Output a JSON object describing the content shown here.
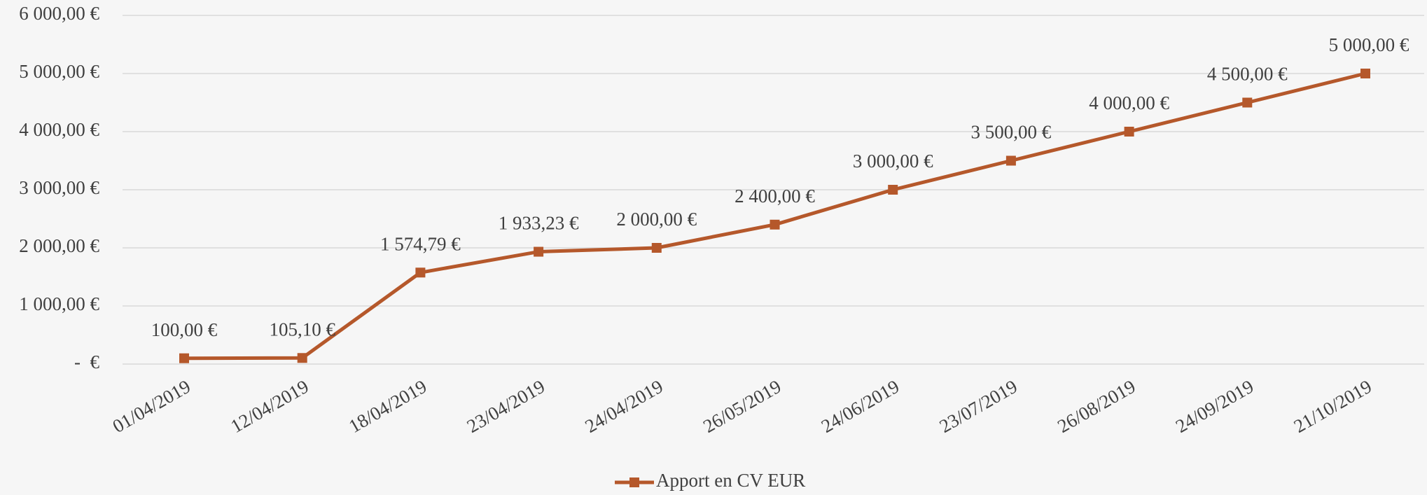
{
  "chart_data": {
    "type": "line",
    "categories": [
      "01/04/2019",
      "12/04/2019",
      "18/04/2019",
      "23/04/2019",
      "24/04/2019",
      "26/05/2019",
      "24/06/2019",
      "23/07/2019",
      "26/08/2019",
      "24/09/2019",
      "21/10/2019"
    ],
    "series": [
      {
        "name": "Apport en CV EUR",
        "color": "#b5582b",
        "values": [
          100,
          105.1,
          1574.79,
          1933.23,
          2000,
          2400,
          3000,
          3500,
          4000,
          4500,
          5000
        ],
        "value_labels": [
          "100,00 €",
          "105,10 €",
          "1 574,79 €",
          "1 933,23 €",
          "2 000,00 €",
          "2 400,00 €",
          "3 000,00 €",
          "3 500,00 €",
          "4 000,00 €",
          "4 500,00 €",
          "5 000,00 €"
        ]
      }
    ],
    "ylim": [
      0,
      6000
    ],
    "yticks": [
      {
        "value": 0,
        "label": "-  €"
      },
      {
        "value": 1000,
        "label": "1 000,00 €"
      },
      {
        "value": 2000,
        "label": "2 000,00 €"
      },
      {
        "value": 3000,
        "label": "3 000,00 €"
      },
      {
        "value": 4000,
        "label": "4 000,00 €"
      },
      {
        "value": 5000,
        "label": "5 000,00 €"
      },
      {
        "value": 6000,
        "label": "6 000,00 €"
      }
    ],
    "grid": true,
    "legend": "bottom"
  }
}
